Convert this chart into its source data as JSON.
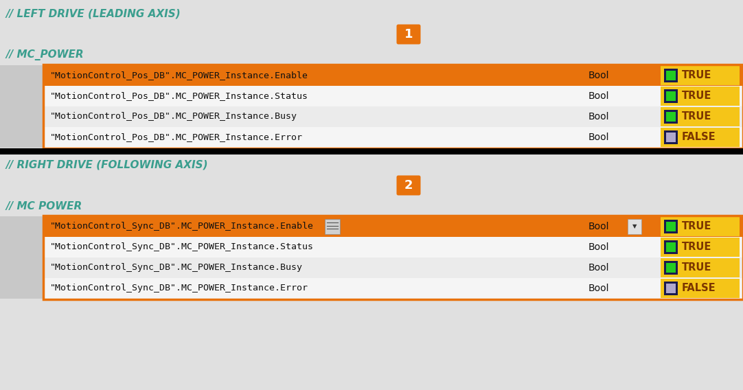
{
  "bg_color": "#e0e0e0",
  "white_color": "#ffffff",
  "orange_color": "#E8720C",
  "gold_bg": "#F5C518",
  "black_color": "#000000",
  "teal_color": "#3a9e8e",
  "dark_navy": "#1a1a4e",
  "light_gray": "#c8c8c8",
  "row_bg_even": "#ebebeb",
  "row_bg_odd": "#f5f5f5",
  "section1_header": "// LEFT DRIVE (LEADING AXIS)",
  "section2_header": "// RIGHT DRIVE (FOLLOWING AXIS)",
  "mc_power1": "// MC_POWER",
  "mc_power2": "// MC POWER",
  "rows_top": [
    {
      "label": "\"MotionControl_Pos_DB\".MC_POWER_Instance.Enable",
      "type": "Bool",
      "value": "TRUE",
      "is_true": true,
      "highlighted": true,
      "has_icon": false
    },
    {
      "label": "\"MotionControl_Pos_DB\".MC_POWER_Instance.Status",
      "type": "Bool",
      "value": "TRUE",
      "is_true": true,
      "highlighted": false,
      "has_icon": false
    },
    {
      "label": "\"MotionControl_Pos_DB\".MC_POWER_Instance.Busy",
      "type": "Bool",
      "value": "TRUE",
      "is_true": true,
      "highlighted": false,
      "has_icon": false
    },
    {
      "label": "\"MotionControl_Pos_DB\".MC_POWER_Instance.Error",
      "type": "Bool",
      "value": "FALSE",
      "is_true": false,
      "highlighted": false,
      "has_icon": false
    }
  ],
  "rows_bottom": [
    {
      "label": "\"MotionControl_Sync_DB\".MC_POWER_Instance.Enable",
      "type": "Bool",
      "value": "TRUE",
      "is_true": true,
      "highlighted": true,
      "has_icon": true
    },
    {
      "label": "\"MotionControl_Sync_DB\".MC_POWER_Instance.Status",
      "type": "Bool",
      "value": "TRUE",
      "is_true": true,
      "highlighted": false,
      "has_icon": false
    },
    {
      "label": "\"MotionControl_Sync_DB\".MC_POWER_Instance.Busy",
      "type": "Bool",
      "value": "TRUE",
      "is_true": true,
      "highlighted": false,
      "has_icon": false
    },
    {
      "label": "\"MotionControl_Sync_DB\".MC_POWER_Instance.Error",
      "type": "Bool",
      "value": "FALSE",
      "is_true": false,
      "highlighted": false,
      "has_icon": false
    }
  ],
  "badge1": "1",
  "badge2": "2",
  "fig_w": 10.82,
  "fig_h": 5.68,
  "dpi": 100
}
